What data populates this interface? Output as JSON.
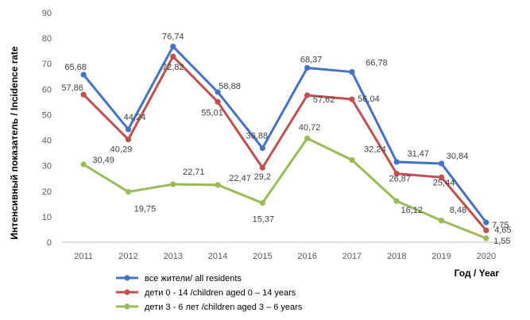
{
  "chart_data": {
    "type": "line",
    "x": [
      "2011",
      "2012",
      "2013",
      "2014",
      "2015",
      "2016",
      "2017",
      "2018",
      "2019",
      "2020"
    ],
    "ylim": [
      0,
      90
    ],
    "yticks": [
      "0",
      "10",
      "20",
      "30",
      "40",
      "50",
      "60",
      "70",
      "80",
      "90"
    ],
    "xlabel": "Год / Year",
    "ylabel": "Интенсивный показатель / Incidence rate",
    "grid": false,
    "legend": "bottom-left",
    "series": [
      {
        "name": "все жители/ all residents",
        "color": "#4472C4",
        "values": [
          65.68,
          44.24,
          76.74,
          58.88,
          36.88,
          68.37,
          66.78,
          31.47,
          30.84,
          7.75
        ],
        "labels": [
          "65,68",
          "44,24",
          "76,74",
          "58,88",
          "36,88",
          "68,37",
          "66,78",
          "31,47",
          "30,84",
          "7,75"
        ]
      },
      {
        "name": "дети 0 - 14 /children aged 0 – 14 years",
        "color": "#C0504D",
        "values": [
          57.86,
          40.29,
          72.82,
          55.01,
          29.2,
          57.62,
          56.04,
          26.87,
          25.44,
          4.65
        ],
        "labels": [
          "57,86",
          "40,29",
          "72,82",
          "55,01",
          "29,2",
          "57,62",
          "56,04",
          "26,87",
          "25,44",
          "4,65"
        ]
      },
      {
        "name": "дети 3 - 6 лет /children aged 3 – 6 years",
        "color": "#9BBB59",
        "values": [
          30.49,
          19.75,
          22.71,
          22.47,
          15.37,
          40.72,
          32.24,
          16.12,
          8.48,
          1.55
        ],
        "labels": [
          "30,49",
          "19,75",
          "22,71",
          "22,47",
          "15,37",
          "40,72",
          "32,24",
          "16,12",
          "8,48",
          "1,55"
        ]
      }
    ]
  }
}
